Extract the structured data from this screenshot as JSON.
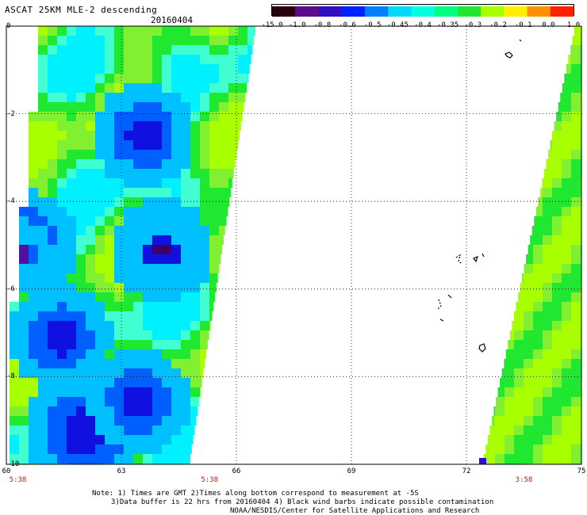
{
  "header": {
    "title": "ASCAT 25KM MLE-2 descending",
    "date": "20160404"
  },
  "colorbar": {
    "labels": [
      "-15.0",
      "-1.0",
      "-0.8",
      "-0.6",
      "-0.5",
      "-0.45",
      "-0.4",
      "-0.35",
      "-0.3",
      "-0.2",
      "-0.1",
      "0.0",
      "1.0"
    ],
    "colors": [
      "#2a0010",
      "#5a0a8a",
      "#3010c0",
      "#0020ff",
      "#0080ff",
      "#00d8ff",
      "#00ffe0",
      "#00ff80",
      "#20e830",
      "#a8ff00",
      "#fff000",
      "#ff9000",
      "#ff2000"
    ]
  },
  "axes": {
    "y_labels": [
      "0",
      "-2",
      "-4",
      "-6",
      "-8",
      "-10"
    ],
    "x_labels": [
      "60",
      "63",
      "66",
      "69",
      "72",
      "75"
    ],
    "lat_range": [
      -10,
      0
    ],
    "lon_range": [
      60,
      75
    ]
  },
  "time_labels": [
    {
      "text": "5:38",
      "lon": 60.3
    },
    {
      "text": "5:38",
      "lon": 65.3
    },
    {
      "text": "3:58",
      "lon": 73.5
    }
  ],
  "notes": [
    "Note: 1) Times are GMT 2)Times along bottom correspond to measurement at -5S",
    "3)Data buffer is 22 hrs from 20160404 4) Black wind barbs indicate possible contamination",
    "NOAA/NESDIS/Center for Satellite Applications and Research"
  ]
}
